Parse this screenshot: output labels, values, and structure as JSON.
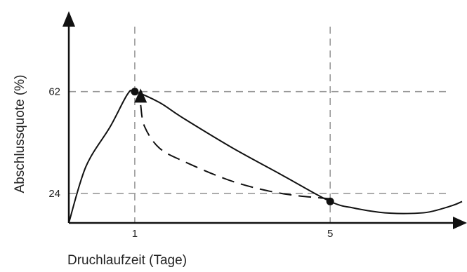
{
  "chart_data": {
    "type": "line",
    "xlabel": "Druchlaufzeit (Tage)",
    "ylabel": "Abschlussquote (%)",
    "x_ticks": [
      {
        "value": 1,
        "label": "1"
      },
      {
        "value": 5,
        "label": "5"
      }
    ],
    "y_ticks": [
      {
        "value": 24,
        "label": "24"
      },
      {
        "value": 62,
        "label": "62"
      }
    ],
    "xlim": [
      -0.35,
      7.7
    ],
    "ylim": [
      13,
      92
    ],
    "grid": "dashed reference lines at the labeled ticks",
    "series": [
      {
        "style": "solid",
        "points": [
          [
            -0.35,
            13
          ],
          [
            0,
            34
          ],
          [
            0.5,
            49
          ],
          [
            0.85,
            61
          ],
          [
            1,
            62
          ],
          [
            1.5,
            58
          ],
          [
            2,
            52
          ],
          [
            3,
            41
          ],
          [
            4,
            31
          ],
          [
            5,
            21
          ],
          [
            5.5,
            18.5
          ],
          [
            6,
            17
          ],
          [
            6.5,
            16.5
          ],
          [
            7,
            17
          ],
          [
            7.5,
            19.5
          ],
          [
            7.7,
            21
          ]
        ],
        "color": "#111111"
      },
      {
        "style": "dashed",
        "points": [
          [
            1.12,
            57
          ],
          [
            1.2,
            49
          ],
          [
            1.5,
            41
          ],
          [
            2,
            36
          ],
          [
            3,
            28.5
          ],
          [
            4,
            24
          ],
          [
            5,
            22
          ]
        ],
        "color": "#111111"
      }
    ],
    "markers": [
      {
        "x": 1,
        "y": 62
      },
      {
        "x": 5,
        "y": 21
      }
    ],
    "arrow": {
      "x": 1.12,
      "y": 60
    },
    "colors": {
      "line": "#111111",
      "grid": "#999999",
      "text": "#222222"
    }
  }
}
